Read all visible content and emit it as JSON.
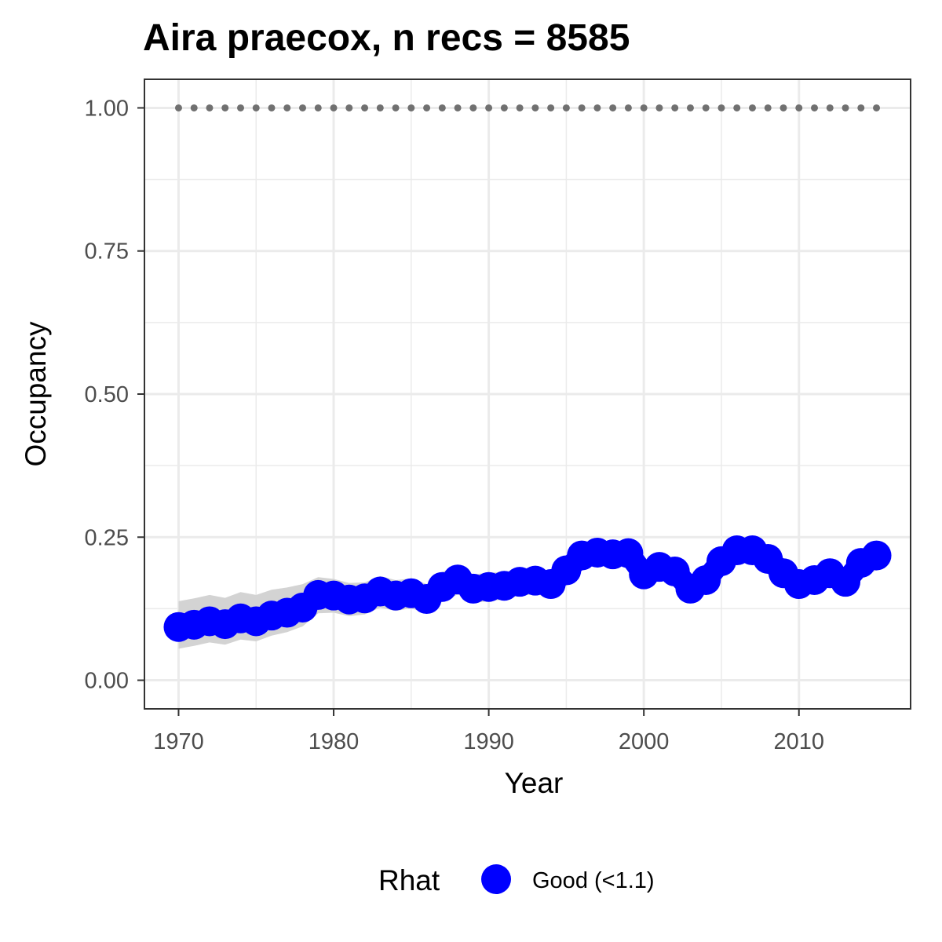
{
  "chart_data": {
    "type": "line",
    "title": "Aira praecox, n recs = 8585",
    "xlabel": "Year",
    "ylabel": "Occupancy",
    "xlim": [
      1967.8,
      2017.2
    ],
    "ylim": [
      -0.05,
      1.05
    ],
    "x_ticks": [
      1970,
      1980,
      1990,
      2000,
      2010
    ],
    "x_tick_labels": [
      "1970",
      "1980",
      "1990",
      "2000",
      "2010"
    ],
    "y_ticks": [
      0,
      0.25,
      0.5,
      0.75,
      1
    ],
    "y_tick_labels": [
      "0.00",
      "0.25",
      "0.50",
      "0.75",
      "1.00"
    ],
    "grid": true,
    "legend": {
      "title": "Rhat",
      "position": "bottom",
      "entries": [
        {
          "label": "Good (<1.1)",
          "color": "#0000ff"
        }
      ]
    },
    "colors": {
      "series": "#0000ff",
      "band": "#d3d3d3",
      "reference": "#707070",
      "grid": "#ebebeb",
      "panel_border": "#333333"
    },
    "series": [
      {
        "rhat": "Good (<1.1)",
        "x": [
          1970,
          1971,
          1972,
          1973,
          1974,
          1975,
          1976,
          1977,
          1978,
          1979,
          1980,
          1981,
          1982,
          1983,
          1984,
          1985,
          1986,
          1987,
          1988,
          1989,
          1990,
          1991,
          1992,
          1993,
          1994,
          1995,
          1996,
          1997,
          1998,
          1999,
          2000,
          2001,
          2002,
          2003,
          2004,
          2005,
          2006,
          2007,
          2008,
          2009,
          2010,
          2011,
          2012,
          2013,
          2014,
          2015
        ],
        "y": [
          0.093,
          0.097,
          0.103,
          0.098,
          0.108,
          0.103,
          0.113,
          0.118,
          0.127,
          0.149,
          0.148,
          0.141,
          0.143,
          0.155,
          0.148,
          0.152,
          0.142,
          0.163,
          0.176,
          0.16,
          0.163,
          0.165,
          0.172,
          0.174,
          0.168,
          0.192,
          0.218,
          0.223,
          0.22,
          0.222,
          0.185,
          0.198,
          0.19,
          0.16,
          0.175,
          0.208,
          0.227,
          0.227,
          0.212,
          0.187,
          0.168,
          0.175,
          0.187,
          0.172,
          0.205,
          0.218
        ],
        "lower": [
          0.055,
          0.06,
          0.066,
          0.062,
          0.071,
          0.068,
          0.078,
          0.084,
          0.094,
          0.117,
          0.118,
          0.112,
          0.115,
          0.127,
          0.121,
          0.126,
          0.116,
          0.137,
          0.15,
          0.135,
          0.138,
          0.141,
          0.148,
          0.15,
          0.145,
          0.169,
          0.195,
          0.201,
          0.198,
          0.2,
          0.164,
          0.177,
          0.169,
          0.139,
          0.154,
          0.187,
          0.205,
          0.205,
          0.19,
          0.166,
          0.146,
          0.153,
          0.164,
          0.149,
          0.181,
          0.192
        ],
        "upper": [
          0.138,
          0.143,
          0.149,
          0.144,
          0.154,
          0.149,
          0.158,
          0.162,
          0.168,
          0.18,
          0.177,
          0.17,
          0.171,
          0.182,
          0.175,
          0.178,
          0.168,
          0.189,
          0.202,
          0.185,
          0.188,
          0.189,
          0.195,
          0.197,
          0.191,
          0.214,
          0.24,
          0.245,
          0.242,
          0.244,
          0.206,
          0.219,
          0.211,
          0.181,
          0.196,
          0.229,
          0.248,
          0.248,
          0.233,
          0.208,
          0.19,
          0.197,
          0.209,
          0.195,
          0.229,
          0.244
        ]
      },
      {
        "name": "",
        "x": [
          1970,
          1971,
          1972,
          1973,
          1974,
          1975,
          1976,
          1977,
          1978,
          1979,
          1980,
          1981,
          1982,
          1983,
          1984,
          1985,
          1986,
          1987,
          1988,
          1989,
          1990,
          1991,
          1992,
          1993,
          1994,
          1995,
          1996,
          1997,
          1998,
          1999,
          2000,
          2001,
          2002,
          2003,
          2004,
          2005,
          2006,
          2007,
          2008,
          2009,
          2010,
          2011,
          2012,
          2013,
          2014,
          2015
        ],
        "y": [
          1,
          1,
          1,
          1,
          1,
          1,
          1,
          1,
          1,
          1,
          1,
          1,
          1,
          1,
          1,
          1,
          1,
          1,
          1,
          1,
          1,
          1,
          1,
          1,
          1,
          1,
          1,
          1,
          1,
          1,
          1,
          1,
          1,
          1,
          1,
          1,
          1,
          1,
          1,
          1,
          1,
          1,
          1,
          1,
          1,
          1
        ]
      }
    ]
  }
}
